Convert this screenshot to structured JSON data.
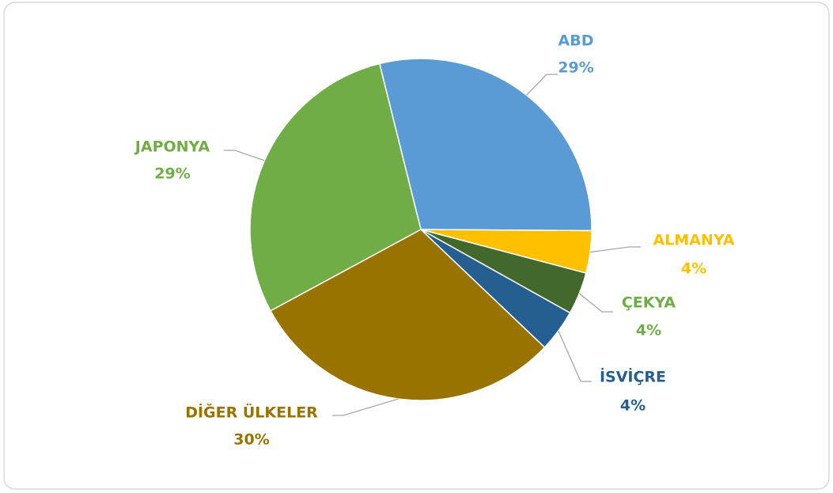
{
  "chart_data": {
    "type": "pie",
    "categories": [
      "ABD",
      "ALMANYA",
      "ÇEKYA",
      "İSVİÇRE",
      "DİĞER ÜLKELER",
      "JAPONYA"
    ],
    "values": [
      29,
      4,
      4,
      4,
      30,
      29
    ],
    "value_labels": [
      "29%",
      "4%",
      "4%",
      "4%",
      "30%",
      "29%"
    ],
    "colors": [
      "#5b9bd5",
      "#ffc000",
      "#43682b",
      "#255e91",
      "#997300",
      "#70ad47"
    ],
    "label_colors": [
      "#5b9bd5",
      "#ffc000",
      "#70ad47",
      "#255e91",
      "#997300",
      "#70ad47"
    ]
  }
}
